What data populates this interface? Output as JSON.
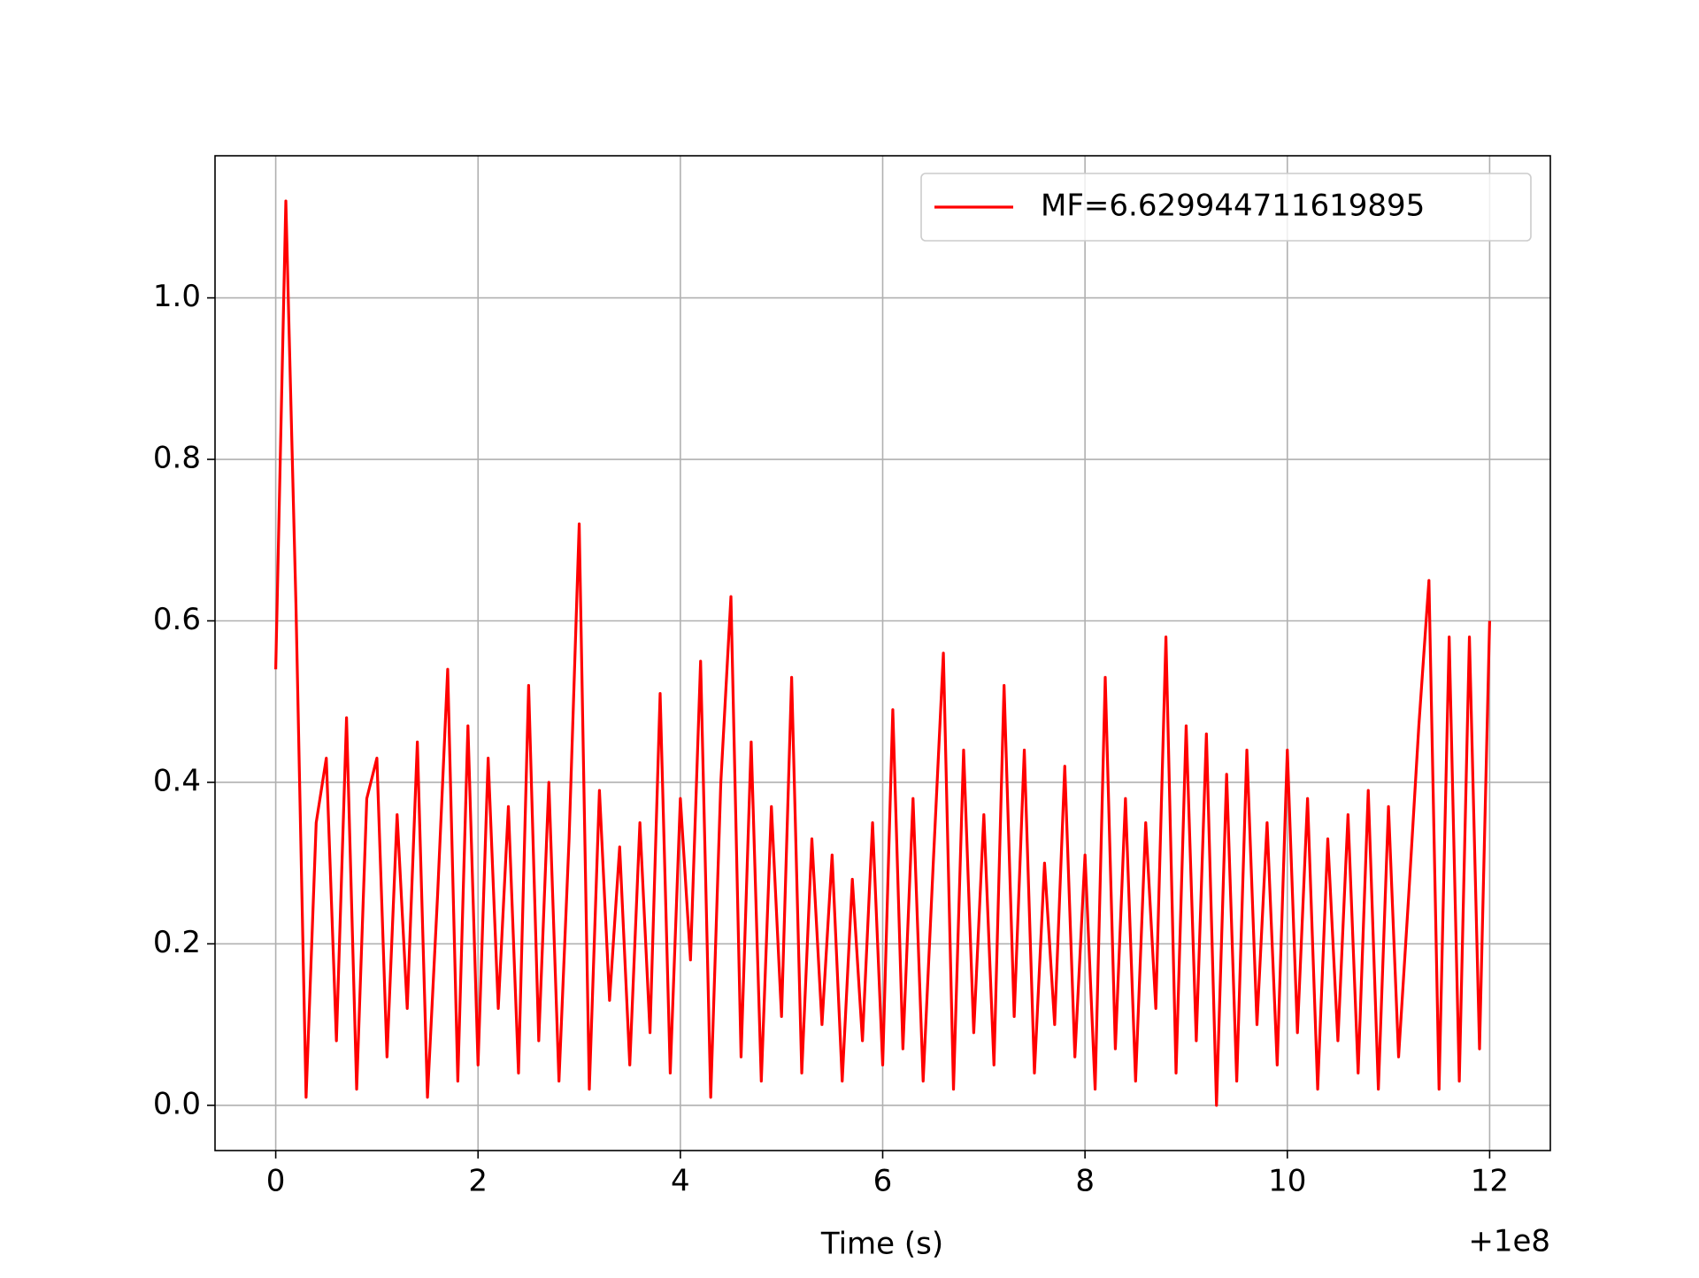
{
  "chart_data": {
    "type": "line",
    "x_label": "Time (s)",
    "x_offset_label": "+1e8",
    "xlim": [
      -0.6,
      12.6
    ],
    "xticks": [
      0,
      2,
      4,
      6,
      8,
      10,
      12
    ],
    "ylim": [
      -0.056,
      1.176
    ],
    "yticks": [
      {
        "value": 0,
        "label": "0.0"
      },
      {
        "value": 0.2,
        "label": "0.2"
      },
      {
        "value": 0.4,
        "label": "0.4"
      },
      {
        "value": 0.6,
        "label": "0.6"
      },
      {
        "value": 0.8,
        "label": "0.8"
      },
      {
        "value": 1.0,
        "label": "1.0"
      }
    ],
    "grid": true,
    "legend": "upper right",
    "x": [
      0,
      0.1,
      0.2,
      0.3,
      0.4,
      0.5,
      0.6,
      0.7,
      0.8,
      0.9,
      1,
      1.1,
      1.2,
      1.3,
      1.4,
      1.5,
      1.6,
      1.7,
      1.8,
      1.9,
      2,
      2.1,
      2.2,
      2.3,
      2.4,
      2.5,
      2.6,
      2.7,
      2.8,
      2.9,
      3,
      3.1,
      3.2,
      3.3,
      3.4,
      3.5,
      3.6,
      3.7,
      3.8,
      3.9,
      4,
      4.1,
      4.2,
      4.3,
      4.4,
      4.5,
      4.6,
      4.7,
      4.8,
      4.9,
      5,
      5.1,
      5.2,
      5.3,
      5.4,
      5.5,
      5.6,
      5.7,
      5.8,
      5.9,
      6,
      6.1,
      6.2,
      6.3,
      6.4,
      6.5,
      6.6,
      6.7,
      6.8,
      6.9,
      7,
      7.1,
      7.2,
      7.3,
      7.4,
      7.5,
      7.6,
      7.7,
      7.8,
      7.9,
      8,
      8.1,
      8.2,
      8.3,
      8.4,
      8.5,
      8.6,
      8.7,
      8.8,
      8.9,
      9,
      9.1,
      9.2,
      9.3,
      9.4,
      9.5,
      9.6,
      9.7,
      9.8,
      9.9,
      10,
      10.1,
      10.2,
      10.3,
      10.4,
      10.5,
      10.6,
      10.7,
      10.8,
      10.9,
      11,
      11.1,
      11.2,
      11.3,
      11.4,
      11.5,
      11.6,
      11.7,
      11.8,
      11.9,
      12
    ],
    "series": [
      {
        "name": "MF=6.629944711619895",
        "color": "#ff0000",
        "values": [
          0.54,
          1.12,
          0.62,
          0.01,
          0.35,
          0.43,
          0.08,
          0.48,
          0.02,
          0.38,
          0.43,
          0.06,
          0.36,
          0.12,
          0.45,
          0.01,
          0.26,
          0.54,
          0.03,
          0.47,
          0.05,
          0.43,
          0.12,
          0.37,
          0.04,
          0.52,
          0.08,
          0.4,
          0.03,
          0.33,
          0.72,
          0.02,
          0.39,
          0.13,
          0.32,
          0.05,
          0.35,
          0.09,
          0.51,
          0.04,
          0.38,
          0.18,
          0.55,
          0.01,
          0.4,
          0.63,
          0.06,
          0.45,
          0.03,
          0.37,
          0.11,
          0.53,
          0.04,
          0.33,
          0.1,
          0.31,
          0.03,
          0.28,
          0.08,
          0.35,
          0.05,
          0.49,
          0.07,
          0.38,
          0.03,
          0.3,
          0.56,
          0.02,
          0.44,
          0.09,
          0.36,
          0.05,
          0.52,
          0.11,
          0.44,
          0.04,
          0.3,
          0.1,
          0.42,
          0.06,
          0.31,
          0.02,
          0.53,
          0.07,
          0.38,
          0.03,
          0.35,
          0.12,
          0.58,
          0.04,
          0.47,
          0.08,
          0.46,
          0.0,
          0.41,
          0.03,
          0.44,
          0.1,
          0.35,
          0.05,
          0.44,
          0.09,
          0.38,
          0.02,
          0.33,
          0.08,
          0.36,
          0.04,
          0.39,
          0.02,
          0.37,
          0.06,
          0.26,
          0.47,
          0.65,
          0.02,
          0.58,
          0.03,
          0.58,
          0.07,
          0.6
        ]
      }
    ]
  }
}
